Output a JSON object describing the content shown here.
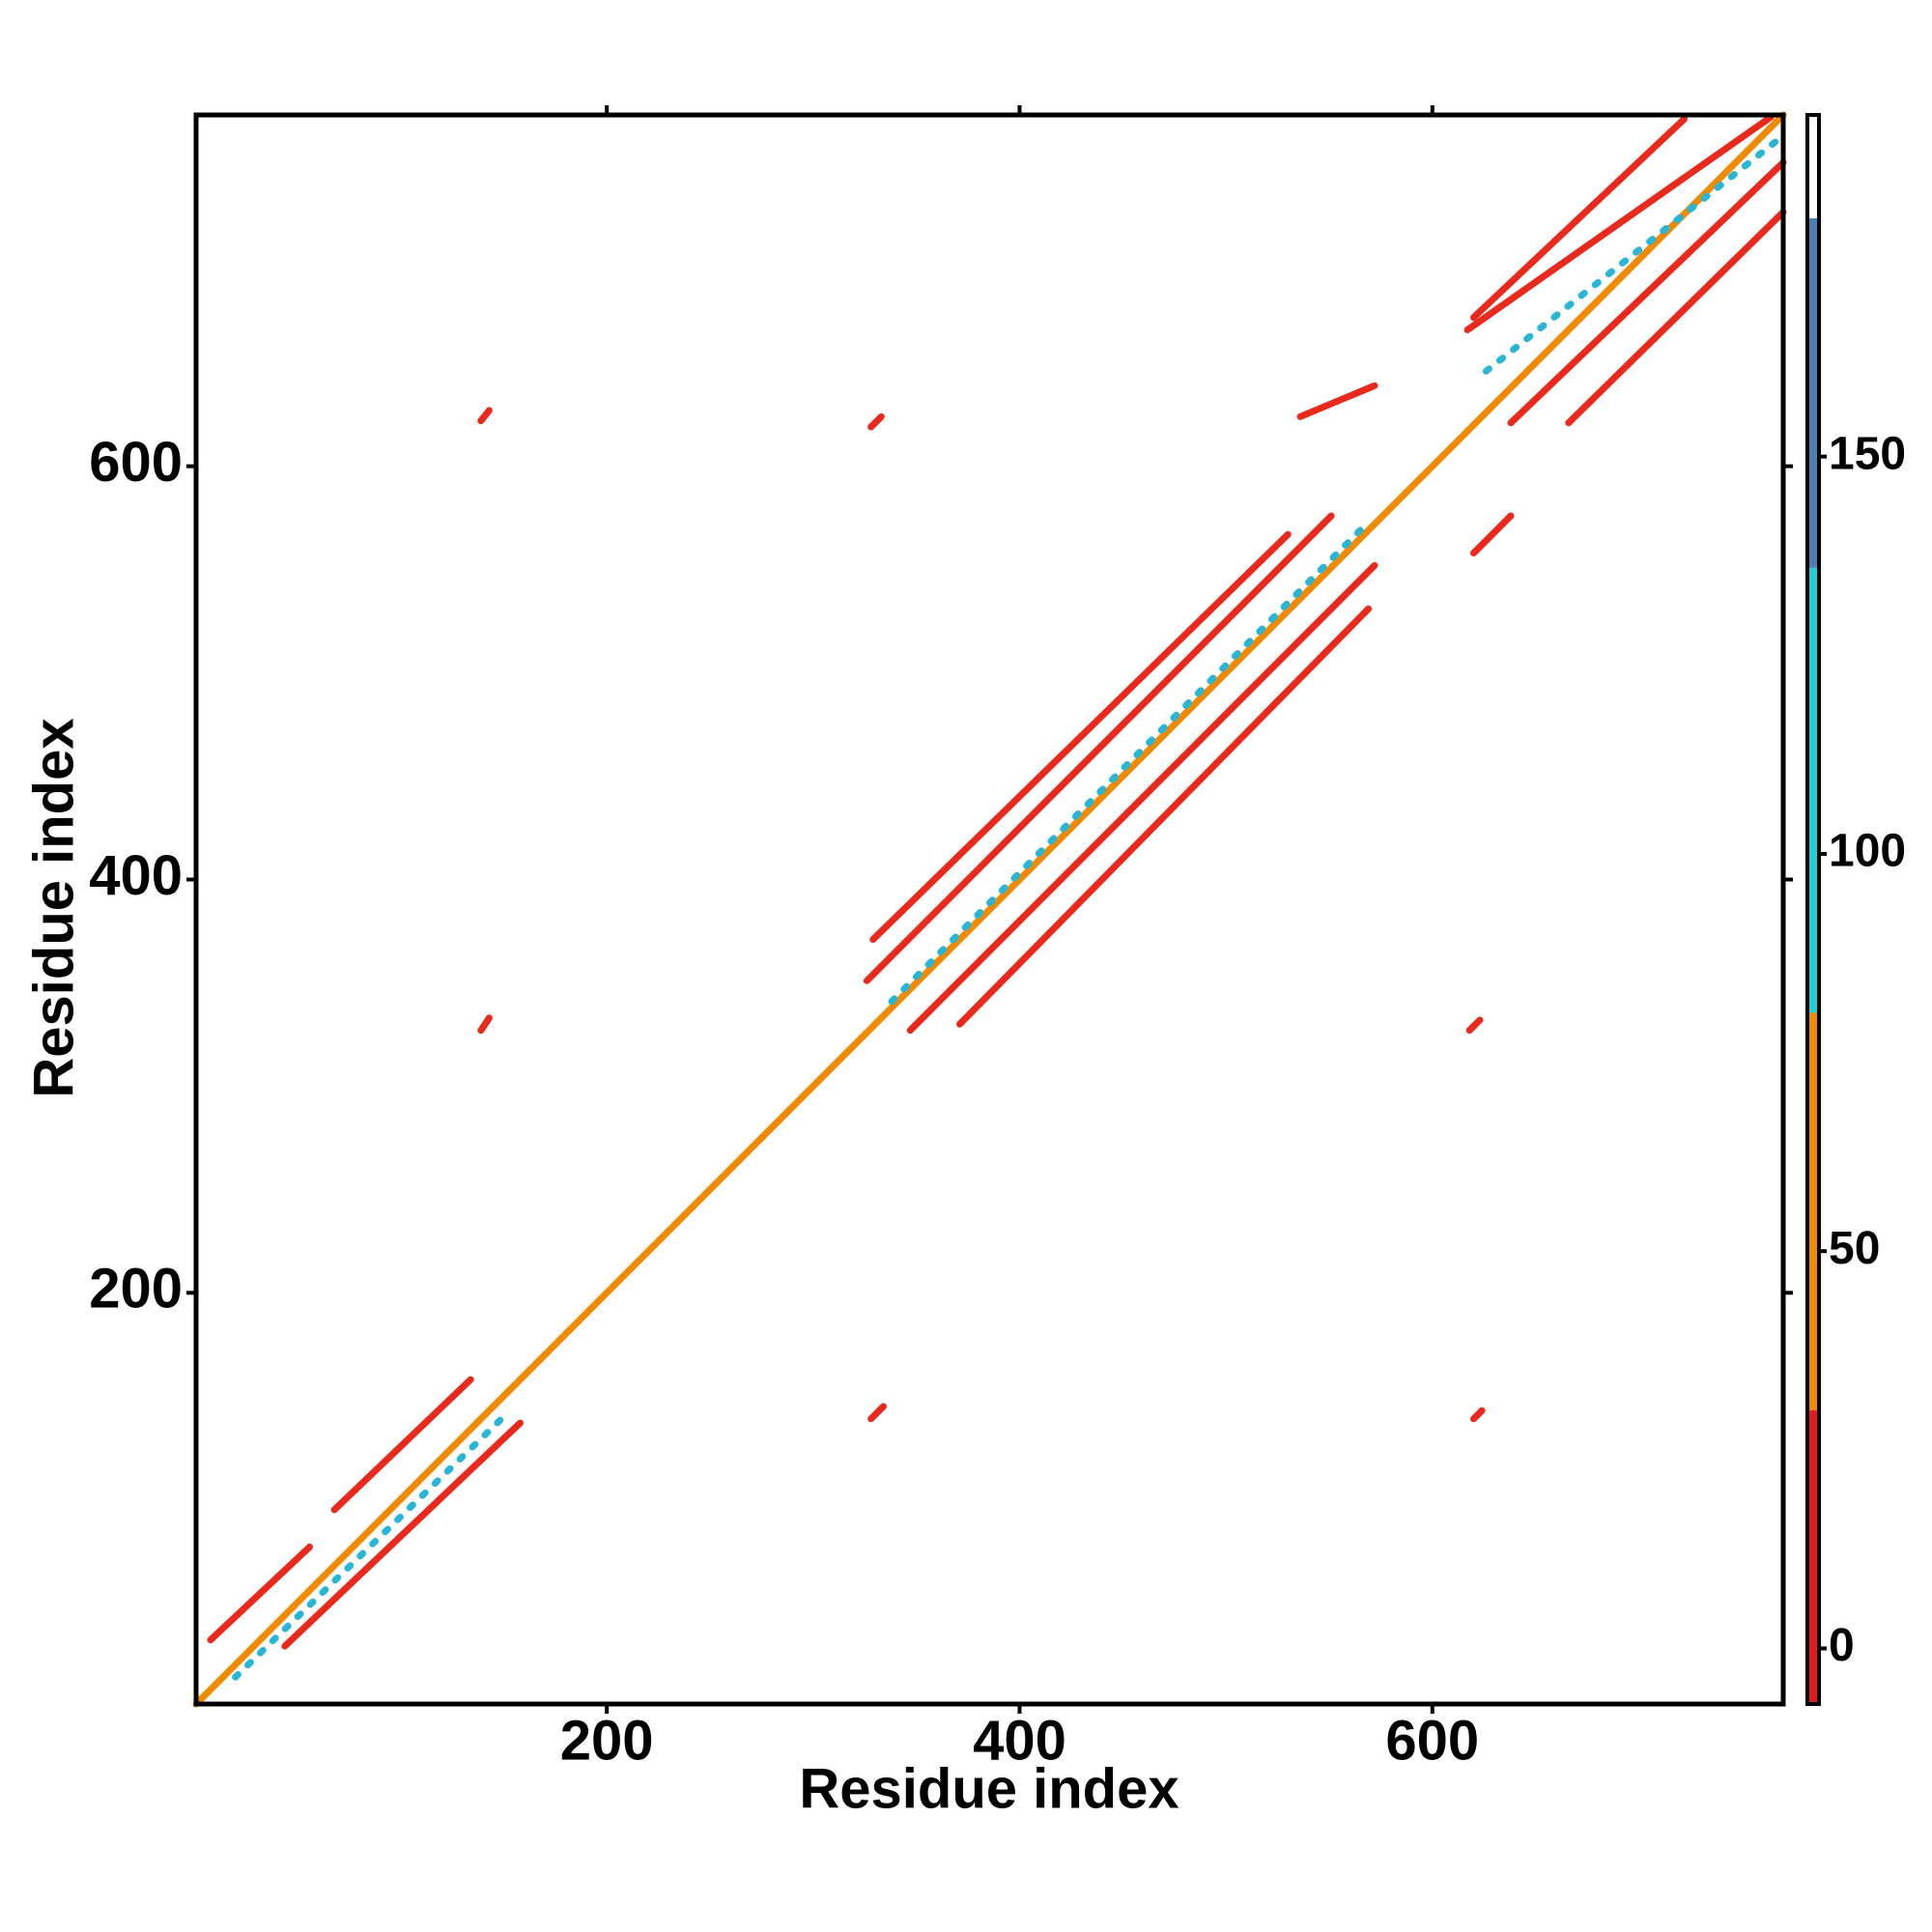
{
  "chart_data": {
    "type": "contact-map",
    "x_label": "Residue index",
    "y_label": "Residue index",
    "xlim": [
      1,
      770
    ],
    "ylim": [
      1,
      770
    ],
    "xticks": [
      200,
      400,
      600
    ],
    "yticks": [
      200,
      400,
      600
    ],
    "segments": [
      {
        "x": [
          1,
          770
        ],
        "y": [
          1,
          770
        ],
        "color": "#f08a00"
      },
      {
        "x": [
          8,
          56
        ],
        "y": [
          32,
          77
        ],
        "color": "#e8291c"
      },
      {
        "x": [
          68,
          134
        ],
        "y": [
          95,
          158
        ],
        "color": "#e8291c"
      },
      {
        "x": [
          44,
          158
        ],
        "y": [
          29,
          137
        ],
        "color": "#e8291c"
      },
      {
        "x": [
          20,
          150
        ],
        "y": [
          14,
          140
        ],
        "color": "#29b6d6"
      },
      {
        "x": [
          326,
          551
        ],
        "y": [
          351,
          576
        ],
        "color": "#e8291c"
      },
      {
        "x": [
          347,
          572
        ],
        "y": [
          327,
          552
        ],
        "color": "#e8291c"
      },
      {
        "x": [
          329,
          530
        ],
        "y": [
          371,
          567
        ],
        "color": "#e8291c"
      },
      {
        "x": [
          371,
          569
        ],
        "y": [
          330,
          531
        ],
        "color": "#e8291c"
      },
      {
        "x": [
          338,
          566
        ],
        "y": [
          341,
          570
        ],
        "color": "#29b6d6"
      },
      {
        "x": [
          617,
          764
        ],
        "y": [
          666,
          769
        ],
        "color": "#e8291c"
      },
      {
        "x": [
          638,
          770
        ],
        "y": [
          621,
          747
        ],
        "color": "#e8291c"
      },
      {
        "x": [
          620,
          722
        ],
        "y": [
          672,
          768
        ],
        "color": "#e8291c"
      },
      {
        "x": [
          666,
          770
        ],
        "y": [
          621,
          723
        ],
        "color": "#e8291c"
      },
      {
        "x": [
          626,
          770
        ],
        "y": [
          646,
          760
        ],
        "color": "#29b6d6"
      },
      {
        "x": [
          139,
          143
        ],
        "y": [
          622,
          627
        ],
        "color": "#e8291c"
      },
      {
        "x": [
          328,
          333
        ],
        "y": [
          619,
          624
        ],
        "color": "#e8291c"
      },
      {
        "x": [
          536,
          572
        ],
        "y": [
          624,
          639
        ],
        "color": "#e8291c"
      },
      {
        "x": [
          139,
          143
        ],
        "y": [
          327,
          333
        ],
        "color": "#e8291c"
      },
      {
        "x": [
          618,
          623
        ],
        "y": [
          327,
          332
        ],
        "color": "#e8291c"
      },
      {
        "x": [
          620,
          638
        ],
        "y": [
          558,
          576
        ],
        "color": "#e8291c"
      },
      {
        "x": [
          328,
          334
        ],
        "y": [
          139,
          145
        ],
        "color": "#e8291c"
      },
      {
        "x": [
          620,
          624
        ],
        "y": [
          139,
          143
        ],
        "color": "#e8291c"
      }
    ],
    "colorbar": {
      "lim": [
        -7,
        193
      ],
      "ticks": [
        0,
        50,
        100,
        150
      ],
      "stops": [
        {
          "from": -7,
          "to": 30,
          "color": "#e41a1c"
        },
        {
          "from": 30,
          "to": 80,
          "color": "#f08a00"
        },
        {
          "from": 80,
          "to": 136,
          "color": "#1fd0dc"
        },
        {
          "from": 136,
          "to": 180,
          "color": "#4a7fb5"
        },
        {
          "from": 180,
          "to": 193,
          "color": "#ffffff"
        }
      ]
    }
  }
}
